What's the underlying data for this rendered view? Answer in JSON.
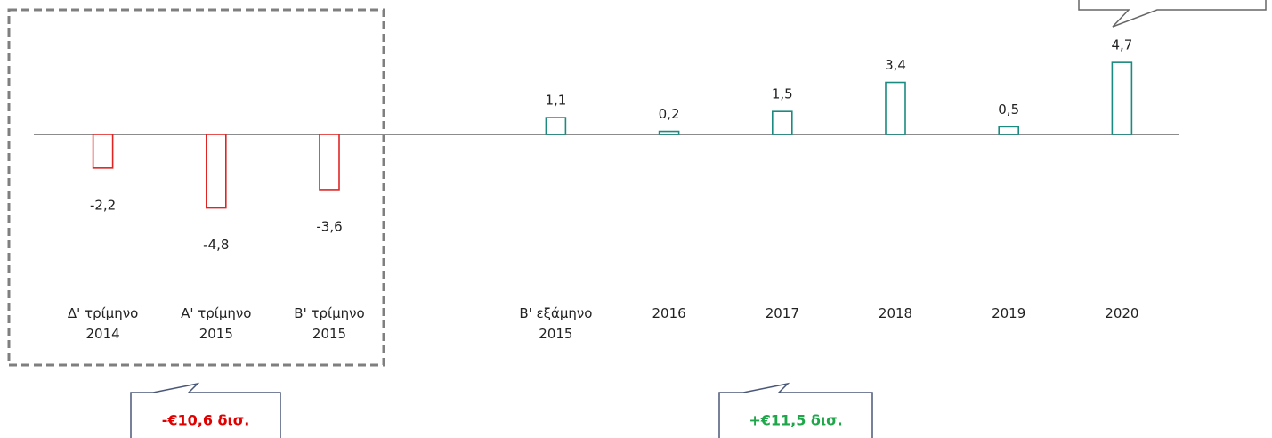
{
  "chart_data": {
    "type": "bar",
    "categories": [
      "Δ' τρίμηνο\n2014",
      "Α' τρίμηνο\n2015",
      "Β' τρίμηνο\n2015",
      null,
      "Β' εξάμηνο\n2015",
      "2016",
      "2017",
      "2018",
      "2019",
      "2020"
    ],
    "values": [
      -2.2,
      -4.8,
      -3.6,
      null,
      1.1,
      0.2,
      1.5,
      3.4,
      0.5,
      4.7
    ],
    "value_labels": [
      "-2,2",
      "-4,8",
      "-3,6",
      null,
      "1,1",
      "0,2",
      "1,5",
      "3,4",
      "0,5",
      "4,7"
    ],
    "negative_color": "#e02424",
    "positive_color": "#1b8a80",
    "ylim": [
      -6,
      6
    ],
    "annotations": [
      {
        "text": "-€10,6 δισ.",
        "color": "#e00000"
      },
      {
        "text": "+€11,5 δισ.",
        "color": "#1fa64a"
      }
    ]
  }
}
